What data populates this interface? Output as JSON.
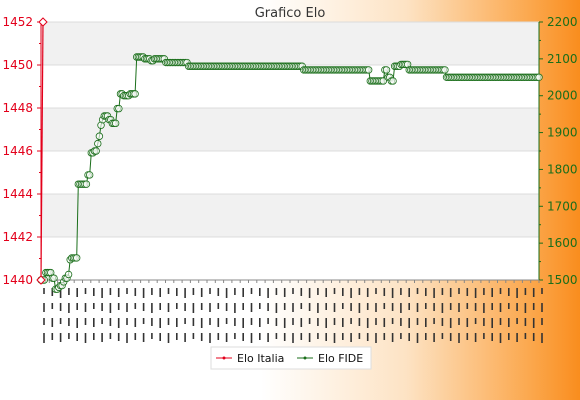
{
  "chart_data": {
    "type": "line",
    "title": "Grafico Elo",
    "y_left": {
      "ticks": [
        "1440",
        "1442",
        "1444",
        "1446",
        "1448",
        "1450",
        "1452"
      ],
      "range": [
        1440,
        1452
      ],
      "color": "#e3001b"
    },
    "y_right": {
      "ticks": [
        "1500",
        "1600",
        "1700",
        "1800",
        "1900",
        "2000",
        "2100",
        "2200"
      ],
      "range": [
        1500,
        2200
      ],
      "color": "#1a6e1a"
    },
    "grid": true,
    "legend": {
      "placement": "bottom-center"
    },
    "series": [
      {
        "name": "Elo Italia",
        "axis": "left",
        "color": "#e3001b",
        "values": [
          1440,
          1452
        ]
      },
      {
        "name": "Elo FIDE",
        "axis": "right",
        "color": "#1a6e1a",
        "values": [
          1500,
          1500,
          1500,
          1520,
          1520,
          1520,
          1520,
          1505,
          1505,
          1475,
          1475,
          1480,
          1485,
          1485,
          1495,
          1505,
          1505,
          1515,
          1555,
          1560,
          1560,
          1560,
          1560,
          1760,
          1760,
          1760,
          1760,
          1760,
          1760,
          1785,
          1785,
          1845,
          1845,
          1850,
          1850,
          1870,
          1890,
          1920,
          1935,
          1945,
          1945,
          1945,
          1935,
          1935,
          1925,
          1925,
          1925,
          1965,
          1965,
          2005,
          2005,
          2000,
          2000,
          2000,
          2000,
          2005,
          2005,
          2005,
          2005,
          2105,
          2105,
          2105,
          2105,
          2105,
          2100,
          2100,
          2100,
          2100,
          2095,
          2095,
          2100,
          2100,
          2100,
          2100,
          2100,
          2100,
          2100,
          2090,
          2090,
          2090,
          2090,
          2090,
          2090,
          2090,
          2090,
          2090,
          2090,
          2090,
          2090,
          2090,
          2090,
          2080,
          2080,
          2080,
          2080,
          2080,
          2080,
          2080,
          2080,
          2080,
          2080,
          2080,
          2080,
          2080,
          2080,
          2080,
          2080,
          2080,
          2080,
          2080,
          2080,
          2080,
          2080,
          2080,
          2080,
          2080,
          2080,
          2080,
          2080,
          2080,
          2080,
          2080,
          2080,
          2080,
          2080,
          2080,
          2080,
          2080,
          2080,
          2080,
          2080,
          2080,
          2080,
          2080,
          2080,
          2080,
          2080,
          2080,
          2080,
          2080,
          2080,
          2080,
          2080,
          2080,
          2080,
          2080,
          2080,
          2080,
          2080,
          2080,
          2080,
          2080,
          2080,
          2080,
          2080,
          2080,
          2080,
          2080,
          2080,
          2080,
          2080,
          2080,
          2070,
          2070,
          2070,
          2070,
          2070,
          2070,
          2070,
          2070,
          2070,
          2070,
          2070,
          2070,
          2070,
          2070,
          2070,
          2070,
          2070,
          2070,
          2070,
          2070,
          2070,
          2070,
          2070,
          2070,
          2070,
          2070,
          2070,
          2070,
          2070,
          2070,
          2070,
          2070,
          2070,
          2070,
          2070,
          2070,
          2070,
          2070,
          2070,
          2070,
          2070,
          2040,
          2040,
          2040,
          2040,
          2040,
          2040,
          2040,
          2040,
          2040,
          2070,
          2070,
          2050,
          2050,
          2040,
          2040,
          2080,
          2080,
          2080,
          2080,
          2085,
          2085,
          2085,
          2085,
          2085,
          2070,
          2070,
          2070,
          2070,
          2070,
          2070,
          2070,
          2070,
          2070,
          2070,
          2070,
          2070,
          2070,
          2070,
          2070,
          2070,
          2070,
          2070,
          2070,
          2070,
          2070,
          2070,
          2070,
          2050,
          2050,
          2050,
          2050,
          2050,
          2050,
          2050,
          2050,
          2050,
          2050,
          2050,
          2050,
          2050,
          2050,
          2050,
          2050,
          2050,
          2050,
          2050,
          2050,
          2050,
          2050,
          2050,
          2050,
          2050,
          2050,
          2050,
          2050,
          2050,
          2050,
          2050,
          2050,
          2050,
          2050,
          2050,
          2050,
          2050,
          2050,
          2050,
          2050,
          2050,
          2050,
          2050,
          2050,
          2050,
          2050,
          2050,
          2050,
          2050,
          2050,
          2050,
          2050,
          2050,
          2050,
          2050,
          2050,
          2050,
          2050
        ]
      }
    ]
  }
}
